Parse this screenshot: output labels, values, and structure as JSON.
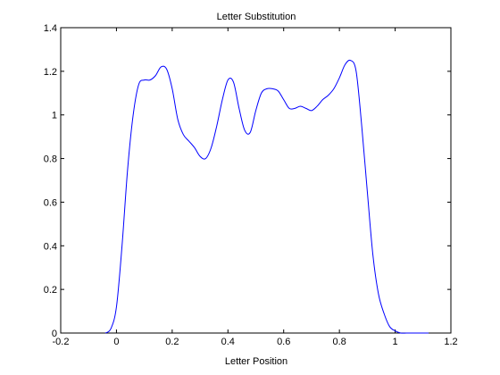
{
  "chart_data": {
    "type": "line",
    "title": "Letter Substitution",
    "xlabel": "Letter Position",
    "ylabel": "",
    "xlim": [
      -0.2,
      1.2
    ],
    "ylim": [
      0,
      1.4
    ],
    "xticks": [
      "-0.2",
      "0",
      "0.2",
      "0.4",
      "0.6",
      "0.8",
      "1",
      "1.2"
    ],
    "yticks": [
      "0",
      "0.2",
      "0.4",
      "0.6",
      "0.8",
      "1",
      "1.2",
      "1.4"
    ],
    "grid": false,
    "line_color": "#0000ff",
    "series": [
      {
        "x": [
          -0.04,
          -0.02,
          0.0,
          0.02,
          0.04,
          0.06,
          0.08,
          0.1,
          0.12,
          0.14,
          0.16,
          0.18,
          0.2,
          0.22,
          0.24,
          0.26,
          0.28,
          0.3,
          0.32,
          0.34,
          0.36,
          0.38,
          0.4,
          0.42,
          0.44,
          0.46,
          0.48,
          0.5,
          0.52,
          0.54,
          0.56,
          0.58,
          0.6,
          0.62,
          0.64,
          0.66,
          0.68,
          0.7,
          0.72,
          0.74,
          0.76,
          0.78,
          0.8,
          0.82,
          0.84,
          0.86,
          0.88,
          0.9,
          0.92,
          0.94,
          0.96,
          0.98,
          1.0,
          1.02,
          1.04,
          1.06,
          1.08,
          1.1,
          1.12
        ],
        "values": [
          0.0,
          0.02,
          0.12,
          0.4,
          0.75,
          1.0,
          1.14,
          1.16,
          1.16,
          1.18,
          1.22,
          1.21,
          1.12,
          0.98,
          0.91,
          0.88,
          0.85,
          0.81,
          0.8,
          0.85,
          0.95,
          1.07,
          1.16,
          1.15,
          1.03,
          0.93,
          0.92,
          1.02,
          1.1,
          1.12,
          1.12,
          1.11,
          1.07,
          1.03,
          1.03,
          1.04,
          1.03,
          1.02,
          1.04,
          1.07,
          1.09,
          1.12,
          1.17,
          1.23,
          1.25,
          1.2,
          0.95,
          0.65,
          0.36,
          0.18,
          0.09,
          0.03,
          0.01,
          0.0,
          0.0,
          0.0,
          0.0,
          0.0,
          0.0
        ]
      }
    ]
  }
}
